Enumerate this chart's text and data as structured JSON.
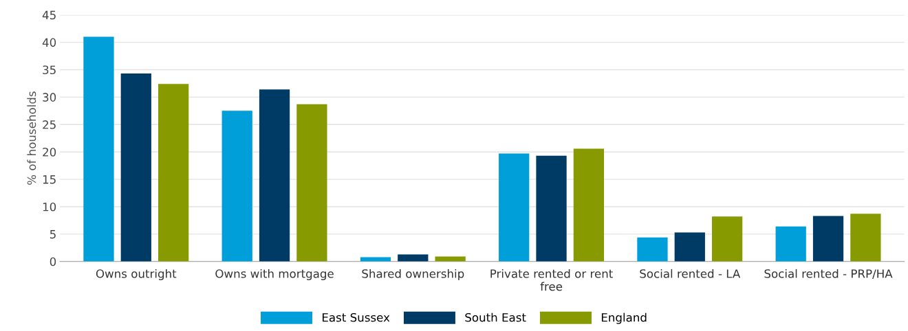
{
  "chart_data": {
    "type": "bar",
    "ylabel": "% of households",
    "categories": [
      "Owns outright",
      "Owns with mortgage",
      "Shared ownership",
      "Private rented or rent free",
      "Social rented - LA",
      "Social rented - PRP/HA"
    ],
    "series": [
      {
        "name": "East Sussex",
        "color": "#009fda",
        "values": [
          41.0,
          27.5,
          0.8,
          19.7,
          4.4,
          6.4
        ]
      },
      {
        "name": "South East",
        "color": "#003b66",
        "values": [
          34.3,
          31.4,
          1.3,
          19.3,
          5.3,
          8.3
        ]
      },
      {
        "name": "England",
        "color": "#879b00",
        "values": [
          32.4,
          28.7,
          0.9,
          20.6,
          8.2,
          8.7
        ]
      }
    ],
    "ylim": [
      0,
      45
    ],
    "yticks": [
      0,
      5,
      10,
      15,
      20,
      25,
      30,
      35,
      40,
      45
    ],
    "grid": "y",
    "legend": "bottom"
  }
}
